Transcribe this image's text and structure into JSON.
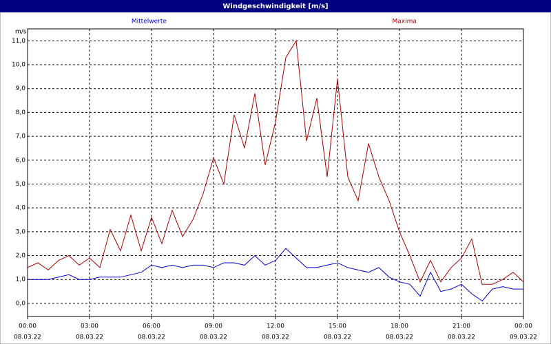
{
  "chart_data": {
    "type": "line",
    "title": "Windgeschwindigkeit [m/s]",
    "ylabel": "m/s",
    "x": [
      0,
      0.5,
      1,
      1.5,
      2,
      2.5,
      3,
      3.5,
      4,
      4.5,
      5,
      5.5,
      6,
      6.5,
      7,
      7.5,
      8,
      8.5,
      9,
      9.5,
      10,
      10.5,
      11,
      11.5,
      12,
      12.5,
      13,
      13.5,
      14,
      14.5,
      15,
      15.5,
      16,
      16.5,
      17,
      17.5,
      18,
      18.5,
      19,
      19.5,
      20,
      20.5,
      21,
      21.5,
      22,
      22.5,
      23,
      23.5,
      24
    ],
    "series": [
      {
        "name": "Mittelwerte",
        "color": "#0000cc",
        "values": [
          1.0,
          1.0,
          1.0,
          1.1,
          1.2,
          1.0,
          1.0,
          1.1,
          1.1,
          1.1,
          1.2,
          1.3,
          1.6,
          1.5,
          1.6,
          1.5,
          1.6,
          1.6,
          1.5,
          1.7,
          1.7,
          1.6,
          2.0,
          1.6,
          1.8,
          2.3,
          1.9,
          1.5,
          1.5,
          1.6,
          1.7,
          1.5,
          1.4,
          1.3,
          1.5,
          1.1,
          0.9,
          0.8,
          0.3,
          1.3,
          0.5,
          0.6,
          0.8,
          0.4,
          0.1,
          0.6,
          0.7,
          0.6,
          0.6
        ]
      },
      {
        "name": "Maxima",
        "color": "#aa0000",
        "values": [
          1.5,
          1.7,
          1.4,
          1.8,
          2.0,
          1.6,
          1.9,
          1.5,
          3.1,
          2.2,
          3.7,
          2.2,
          3.6,
          2.5,
          3.9,
          2.8,
          3.5,
          4.6,
          6.1,
          5.0,
          7.9,
          6.5,
          8.8,
          5.8,
          7.6,
          10.3,
          11.0,
          6.8,
          8.6,
          5.3,
          9.4,
          5.3,
          4.3,
          6.7,
          5.3,
          4.3,
          3.0,
          2.0,
          0.9,
          1.8,
          0.9,
          1.5,
          1.9,
          2.7,
          0.8,
          0.8,
          1.0,
          1.3,
          0.9
        ]
      }
    ],
    "xlim": [
      0,
      24
    ],
    "xticks": [
      {
        "value": 0,
        "label": "00:00"
      },
      {
        "value": 3,
        "label": "03:00"
      },
      {
        "value": 6,
        "label": "06:00"
      },
      {
        "value": 9,
        "label": "09:00"
      },
      {
        "value": 12,
        "label": "12:00"
      },
      {
        "value": 15,
        "label": "15:00"
      },
      {
        "value": 18,
        "label": "18:00"
      },
      {
        "value": 21,
        "label": "21:00"
      },
      {
        "value": 24,
        "label": "00:00"
      }
    ],
    "xtick_dates": [
      "08.03.22",
      "08.03.22",
      "08.03.22",
      "08.03.22",
      "08.03.22",
      "08.03.22",
      "08.03.22",
      "08.03.22",
      "09.03.22"
    ],
    "ylim": [
      -0.55,
      11.5
    ],
    "yticks": [
      {
        "value": 0,
        "label": "0,0"
      },
      {
        "value": 1,
        "label": "1,0"
      },
      {
        "value": 2,
        "label": "2,0"
      },
      {
        "value": 3,
        "label": "3,0"
      },
      {
        "value": 4,
        "label": "4,0"
      },
      {
        "value": 5,
        "label": "5,0"
      },
      {
        "value": 6,
        "label": "6,0"
      },
      {
        "value": 7,
        "label": "7,0"
      },
      {
        "value": 8,
        "label": "8,0"
      },
      {
        "value": 9,
        "label": "9,0"
      },
      {
        "value": 10,
        "label": "10,0"
      },
      {
        "value": 11,
        "label": "11,0"
      }
    ],
    "grid": true
  }
}
